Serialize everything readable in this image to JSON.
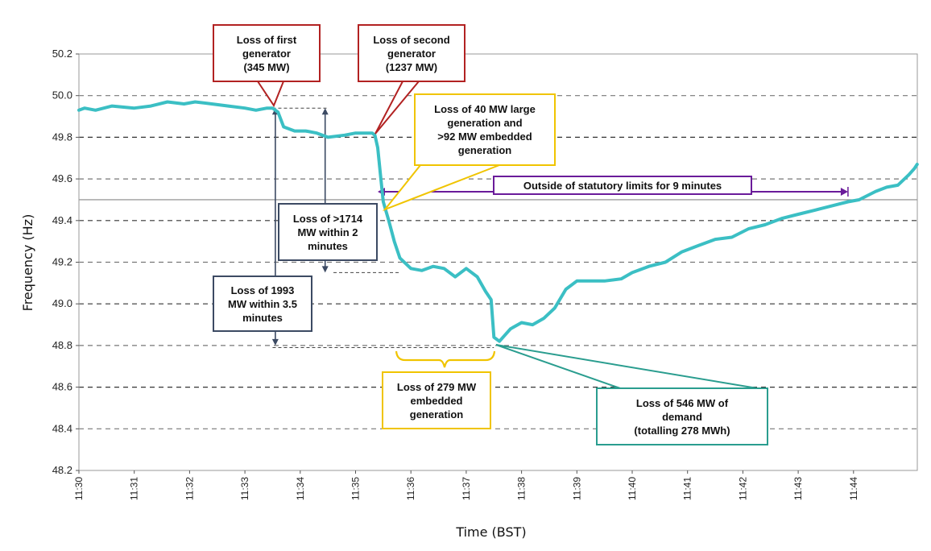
{
  "chart_data": {
    "type": "line",
    "xlabel": "Time (BST)",
    "ylabel": "Frequency (Hz)",
    "ylim": [
      48.2,
      50.2
    ],
    "yticks": [
      "48.2",
      "48.4",
      "48.6",
      "48.8",
      "49.0",
      "49.2",
      "49.4",
      "49.6",
      "49.8",
      "50.0",
      "50.2"
    ],
    "xticks": [
      "11:30",
      "11:31",
      "11:32",
      "11:33",
      "11:34",
      "11:35",
      "11:36",
      "11:37",
      "11:38",
      "11:39",
      "11:40",
      "11:41",
      "11:42",
      "11:43",
      "11:44"
    ],
    "xlim_minutes": [
      0,
      15.2
    ],
    "x_unit": "minutes after 11:30",
    "statutory_limit_hz": 49.5,
    "grid": "horizontal dashed",
    "series": [
      {
        "color": "#3bbfc4",
        "x": [
          0,
          0.1,
          0.3,
          0.6,
          1.0,
          1.3,
          1.6,
          1.9,
          2.1,
          2.4,
          2.7,
          3.0,
          3.2,
          3.4,
          3.5,
          3.6,
          3.7,
          3.9,
          4.1,
          4.3,
          4.5,
          4.8,
          5.0,
          5.2,
          5.3,
          5.35,
          5.4,
          5.45,
          5.5,
          5.6,
          5.7,
          5.8,
          6.0,
          6.2,
          6.4,
          6.6,
          6.8,
          7.0,
          7.2,
          7.35,
          7.45,
          7.5,
          7.6,
          7.8,
          8.0,
          8.2,
          8.4,
          8.6,
          8.8,
          9.0,
          9.2,
          9.5,
          9.8,
          10.0,
          10.3,
          10.6,
          10.9,
          11.2,
          11.5,
          11.8,
          12.1,
          12.4,
          12.7,
          13.0,
          13.3,
          13.6,
          13.9,
          14.1,
          14.4,
          14.6,
          14.8,
          15.0,
          15.1,
          15.15
        ],
        "values": [
          49.93,
          49.94,
          49.93,
          49.95,
          49.94,
          49.95,
          49.97,
          49.96,
          49.97,
          49.96,
          49.95,
          49.94,
          49.93,
          49.94,
          49.94,
          49.92,
          49.85,
          49.83,
          49.83,
          49.82,
          49.8,
          49.81,
          49.82,
          49.82,
          49.82,
          49.81,
          49.75,
          49.62,
          49.49,
          49.4,
          49.3,
          49.22,
          49.17,
          49.16,
          49.18,
          49.17,
          49.13,
          49.17,
          49.13,
          49.06,
          49.02,
          48.84,
          48.82,
          48.88,
          48.91,
          48.9,
          48.93,
          48.98,
          49.07,
          49.11,
          49.11,
          49.11,
          49.12,
          49.15,
          49.18,
          49.2,
          49.25,
          49.28,
          49.31,
          49.32,
          49.36,
          49.38,
          49.41,
          49.43,
          49.45,
          49.47,
          49.49,
          49.5,
          49.54,
          49.56,
          49.57,
          49.62,
          49.65,
          49.67
        ]
      }
    ],
    "annotations": [
      {
        "id": "first",
        "text": "Loss of first\ngenerator\n(345 MW)"
      },
      {
        "id": "second",
        "text": "Loss of second\ngenerator\n(1237 MW)"
      },
      {
        "id": "large",
        "text": "Loss of 40 MW large\ngeneration and\n>92 MW embedded\ngeneration"
      },
      {
        "id": "statutory",
        "text": "Outside of statutory limits for 9 minutes"
      },
      {
        "id": "loss1714",
        "text": "Loss of >1714\nMW within 2\nminutes"
      },
      {
        "id": "loss1993",
        "text": "Loss of 1993\nMW within 3.5\nminutes"
      },
      {
        "id": "loss279",
        "text": "Loss of 279 MW\nembedded\ngeneration"
      },
      {
        "id": "loss546",
        "text": "Loss of 546 MW of\ndemand\n(totalling 278 MWh)"
      }
    ]
  }
}
